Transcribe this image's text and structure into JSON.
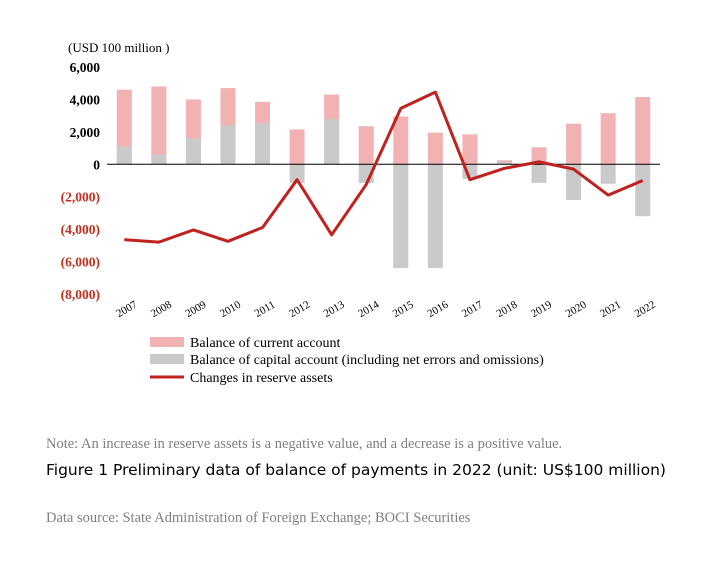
{
  "figure": {
    "note": "Note: An increase in reserve assets is a negative value, and a decrease is a positive value.",
    "title": "Figure 1 Preliminary data of balance of payments in 2022 (unit: US$100 million)",
    "source": "Data source: State Administration of Foreign Exchange; BOCI Securities"
  },
  "chart_data": {
    "type": "bar",
    "unit_label": "(USD 100 million )",
    "categories": [
      "2007",
      "2008",
      "2009",
      "2010",
      "2011",
      "2012",
      "2013",
      "2014",
      "2015",
      "2016",
      "2017",
      "2018",
      "2019",
      "2020",
      "2021",
      "2022"
    ],
    "ylim": [
      -8000,
      6000
    ],
    "yticks": [
      6000,
      4000,
      2000,
      0,
      -2000,
      -4000,
      -6000,
      -8000
    ],
    "ytick_labels": [
      "6,000",
      "4,000",
      "2,000",
      "0",
      "(2,000)",
      "(4,000)",
      "(6,000)",
      "(8,000)"
    ],
    "grid": false,
    "legend_position": "bottom",
    "series": [
      {
        "name": "Balance of current account",
        "kind": "bar",
        "color": "#f2b2b3",
        "values": [
          4600,
          4800,
          4000,
          4700,
          3850,
          2150,
          4300,
          2350,
          2950,
          1950,
          1850,
          250,
          1050,
          2500,
          3150,
          4150
        ]
      },
      {
        "name": "Balance of capital account (including net errors and omissions)",
        "kind": "bar",
        "color": "#cacaca",
        "values": [
          1100,
          600,
          1600,
          2400,
          2550,
          -1150,
          2800,
          -1150,
          -6400,
          -6400,
          -900,
          150,
          -1150,
          -2200,
          -1200,
          -3200
        ]
      },
      {
        "name": "Changes in reserve assets",
        "kind": "line",
        "color": "#c0221f",
        "values": [
          -4650,
          -4800,
          -4050,
          -4750,
          -3900,
          -950,
          -4350,
          -1250,
          3450,
          4450,
          -950,
          -250,
          150,
          -300,
          -1900,
          -1000
        ]
      }
    ]
  }
}
